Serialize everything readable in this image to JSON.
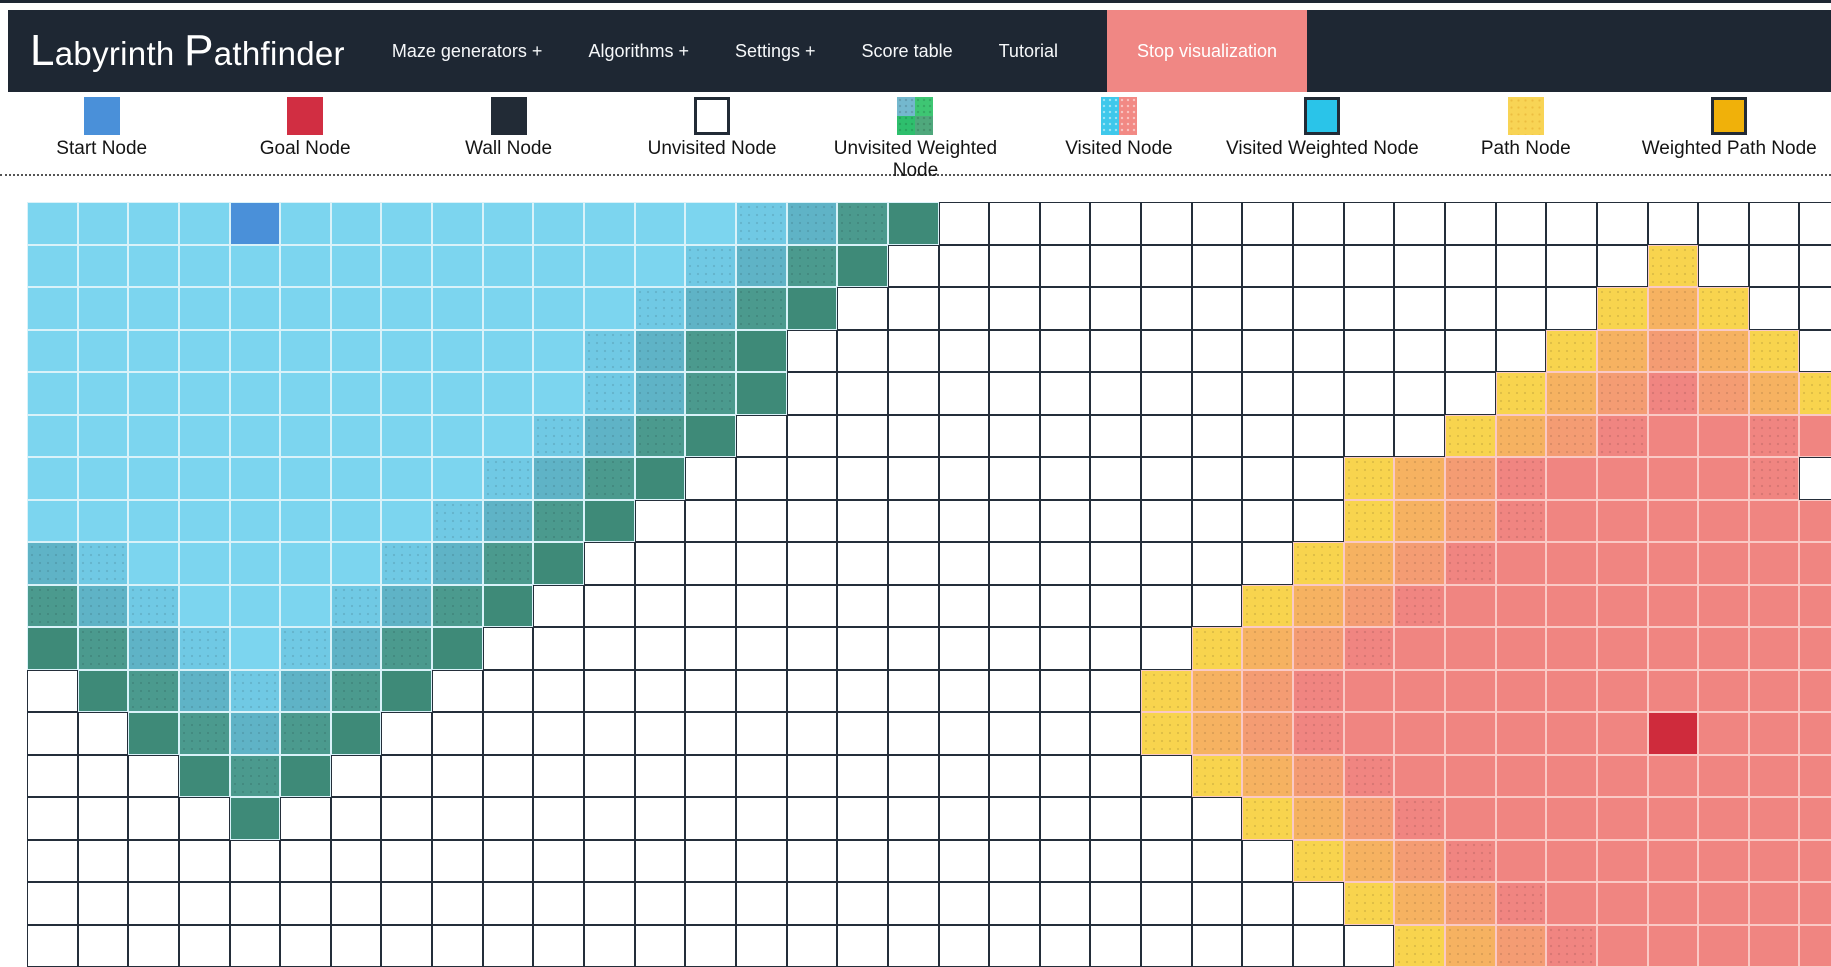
{
  "navbar": {
    "brand": "Labyrinth Pathfinder",
    "items": [
      {
        "id": "maze-generators",
        "label": "Maze generators +"
      },
      {
        "id": "algorithms",
        "label": "Algorithms +"
      },
      {
        "id": "settings",
        "label": "Settings +"
      },
      {
        "id": "score-table",
        "label": "Score table"
      },
      {
        "id": "tutorial",
        "label": "Tutorial"
      }
    ],
    "stop_button": "Stop visualization",
    "colors": {
      "bar": "#1e2733",
      "stop_button": "#f08784",
      "text": "#ffffff"
    }
  },
  "legend": {
    "items": [
      {
        "id": "start-node",
        "label": "Start Node",
        "swatch": "sw-start",
        "color": "#4a90d9"
      },
      {
        "id": "goal-node",
        "label": "Goal Node",
        "swatch": "sw-goal",
        "color": "#d12e42"
      },
      {
        "id": "wall-node",
        "label": "Wall Node",
        "swatch": "sw-wall",
        "color": "#222b36"
      },
      {
        "id": "unvisited-node",
        "label": "Unvisited Node",
        "swatch": "sw-unvisited",
        "color": "#ffffff"
      },
      {
        "id": "unvisited-weighted-node",
        "label": "Unvisited Weighted Node",
        "swatch": "sw-uw",
        "color": "#2ebf6d"
      },
      {
        "id": "visited-node",
        "label": "Visited Node",
        "swatch": "sw-visited",
        "color": "#3fc8eb"
      },
      {
        "id": "visited-weighted-node",
        "label": "Visited Weighted Node",
        "swatch": "sw-vw",
        "color": "#2ac4e9"
      },
      {
        "id": "path-node",
        "label": "Path Node",
        "swatch": "sw-path",
        "color": "#f8d455"
      },
      {
        "id": "weighted-path-node",
        "label": "Weighted Path Node",
        "swatch": "sw-wpath",
        "color": "#f0b10a"
      }
    ]
  },
  "grid": {
    "cols": 36,
    "rows": 18,
    "start_cell": {
      "row": 0,
      "col": 4
    },
    "goal_cell": {
      "row": 12,
      "col": 32
    },
    "palette": {
      "a": "#7cd5ef",
      "b": "#70c9e4",
      "c": "#5fb3c6",
      "d": "#4b9a8e",
      "e": "#3e8a78",
      "S": "#4a90d9",
      ".": "#ffffff",
      "y": "#f8d44e",
      "o": "#f6b261",
      "p": "#f49c73",
      "q": "#f08581",
      "r": "#f08581",
      "G": "#cf2b3c"
    },
    "line_colors": {
      "cool": "#d9f2f9",
      "warm": "#fac9c5",
      "empty": "#242e3a"
    },
    "cool_states": "abcdeS",
    "warm_states": "yopqrG",
    "dotted_states": "bcdyopq",
    "map": [
      "aaaaSaaaaaaaaabcde..................",
      "aaaaaaaaaaaaabcde...............y...",
      "aaaaaaaaaaaabcde...............yoy..",
      "aaaaaaaaaaabcde...............yopoy.",
      "aaaaaaaaaaabcde..............yopqpoy",
      "aaaaaaaaaabcde..............yopqrrqr",
      "aaaaaaaaabcde.............yopqrrrrq",
      "aaaaaaaabcde..............yopqrrrrrr",
      "cbaaaaabcde..............yopqrrrrrrr",
      "dcbaaabcde..............yopqrrrrrrrr",
      "edcbabcde..............yopqrrrrrrrrr",
      ".edcbcde..............yopqrrrrrrrrrr",
      "..edcde...............yopqrrrrrrGrrr",
      "...ede.................yopqrrrrrrrrr",
      "....e...................yopqrrrrrrrr",
      ".........................yopqrrrrrrr",
      "..........................yopqrrrrrr",
      "...........................yopqrrrrr"
    ]
  }
}
